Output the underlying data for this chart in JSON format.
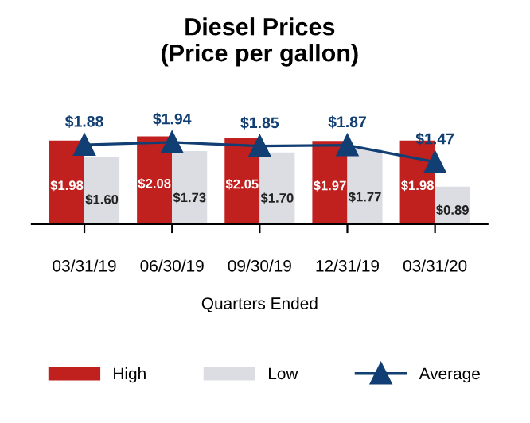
{
  "chart_data": {
    "type": "bar",
    "title": "Diesel Prices\n(Price per gallon)",
    "xlabel": "Quarters Ended",
    "categories": [
      "03/31/19",
      "06/30/19",
      "09/30/19",
      "12/31/19",
      "03/31/20"
    ],
    "series": [
      {
        "name": "High",
        "color": "#c0211f",
        "values": [
          1.98,
          2.08,
          2.05,
          1.97,
          1.98
        ],
        "value_labels": [
          "$1.98",
          "$2.08",
          "$2.05",
          "$1.97",
          "$1.98"
        ]
      },
      {
        "name": "Low",
        "color": "#dcdde2",
        "values": [
          1.6,
          1.73,
          1.7,
          1.77,
          0.89
        ],
        "value_labels": [
          "$1.60",
          "$1.73",
          "$1.70",
          "$1.77",
          "$0.89"
        ]
      },
      {
        "name": "Average",
        "type": "line",
        "color": "#123f73",
        "marker": "triangle",
        "values": [
          1.88,
          1.94,
          1.85,
          1.87,
          1.47
        ],
        "value_labels": [
          "$1.88",
          "$1.94",
          "$1.85",
          "$1.87",
          "$1.47"
        ]
      }
    ],
    "tick_labels": "x",
    "grid": false,
    "legend": "bottom"
  }
}
